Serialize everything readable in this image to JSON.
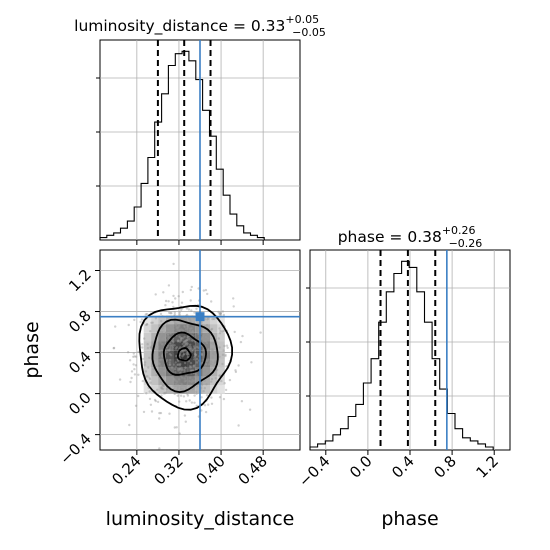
{
  "chart_data": [
    {
      "type": "histogram",
      "panel": "top-left",
      "title_param": "luminosity_distance",
      "title_value": "0.33",
      "title_plus": "+0.05",
      "title_minus": "−0.05",
      "title_sep": " = ",
      "bin_start": 0.17,
      "bin_width": 0.013,
      "counts": [
        1,
        2,
        3,
        5,
        8,
        14,
        24,
        35,
        50,
        62,
        74,
        79,
        80,
        76,
        68,
        55,
        44,
        30,
        19,
        11,
        6,
        3,
        2,
        1
      ],
      "quantiles": [
        0.28,
        0.33,
        0.38
      ],
      "truth": 0.36,
      "xlim": [
        0.17,
        0.55
      ],
      "grid": true
    },
    {
      "type": "scatter-contour",
      "panel": "bottom-left",
      "xlabel": "luminosity_distance",
      "ylabel": "phase",
      "xlim": [
        0.17,
        0.55
      ],
      "ylim": [
        -0.55,
        1.4
      ],
      "xticks": [
        "0.24",
        "0.32",
        "0.40",
        "0.48"
      ],
      "xtick_values": [
        0.24,
        0.32,
        0.4,
        0.48
      ],
      "yticks": [
        "−0.4",
        "0.0",
        "0.4",
        "0.8",
        "1.2"
      ],
      "ytick_values": [
        -0.4,
        0.0,
        0.4,
        0.8,
        1.2
      ],
      "center": [
        0.33,
        0.38
      ],
      "contour_radii": [
        [
          0.012,
          0.06
        ],
        [
          0.04,
          0.2
        ],
        [
          0.062,
          0.34
        ],
        [
          0.087,
          0.5
        ]
      ],
      "truth": [
        0.36,
        0.75
      ],
      "grid": true
    },
    {
      "type": "histogram",
      "panel": "bottom-right",
      "title_param": "phase",
      "title_value": "0.38",
      "title_plus": "+0.26",
      "title_minus": "−0.26",
      "title_sep": " = ",
      "xlabel": "phase",
      "bin_start": -0.55,
      "bin_width": 0.0725,
      "counts": [
        1,
        2,
        3,
        5,
        7,
        11,
        15,
        22,
        30,
        42,
        52,
        58,
        62,
        60,
        52,
        42,
        30,
        20,
        12,
        7,
        4,
        3,
        2,
        1
      ],
      "quantiles": [
        0.12,
        0.38,
        0.64
      ],
      "truth": 0.75,
      "xlim": [
        -0.55,
        1.35
      ],
      "xticks": [
        "−0.4",
        "0.0",
        "0.4",
        "0.8",
        "1.2"
      ],
      "xtick_values": [
        -0.4,
        0.0,
        0.4,
        0.8,
        1.2
      ],
      "grid": true
    }
  ]
}
